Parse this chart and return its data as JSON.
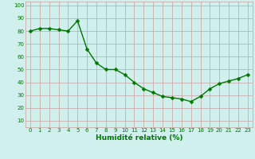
{
  "x": [
    0,
    1,
    2,
    3,
    4,
    5,
    6,
    7,
    8,
    9,
    10,
    11,
    12,
    13,
    14,
    15,
    16,
    17,
    18,
    19,
    20,
    21,
    22,
    23
  ],
  "y": [
    80,
    82,
    82,
    81,
    80,
    88,
    66,
    55,
    50,
    50,
    46,
    40,
    35,
    32,
    29,
    28,
    27,
    25,
    29,
    35,
    39,
    41,
    43,
    46
  ],
  "line_color": "#007700",
  "marker": "D",
  "marker_size": 2.5,
  "marker_color": "#007700",
  "bg_color": "#cff0ec",
  "grid_color_major": "#c8a0a0",
  "grid_color_minor": "#c8a0a0",
  "xlabel": "Humidité relative (%)",
  "xlabel_color": "#007700",
  "tick_color": "#007700",
  "yticks": [
    10,
    20,
    30,
    40,
    50,
    60,
    70,
    80,
    90,
    100
  ],
  "xticks": [
    0,
    1,
    2,
    3,
    4,
    5,
    6,
    7,
    8,
    9,
    10,
    11,
    12,
    13,
    14,
    15,
    16,
    17,
    18,
    19,
    20,
    21,
    22,
    23
  ],
  "ylim": [
    5,
    103
  ],
  "xlim": [
    -0.5,
    23.5
  ],
  "linewidth": 1.0,
  "tick_fontsize": 5.0,
  "xlabel_fontsize": 6.5
}
